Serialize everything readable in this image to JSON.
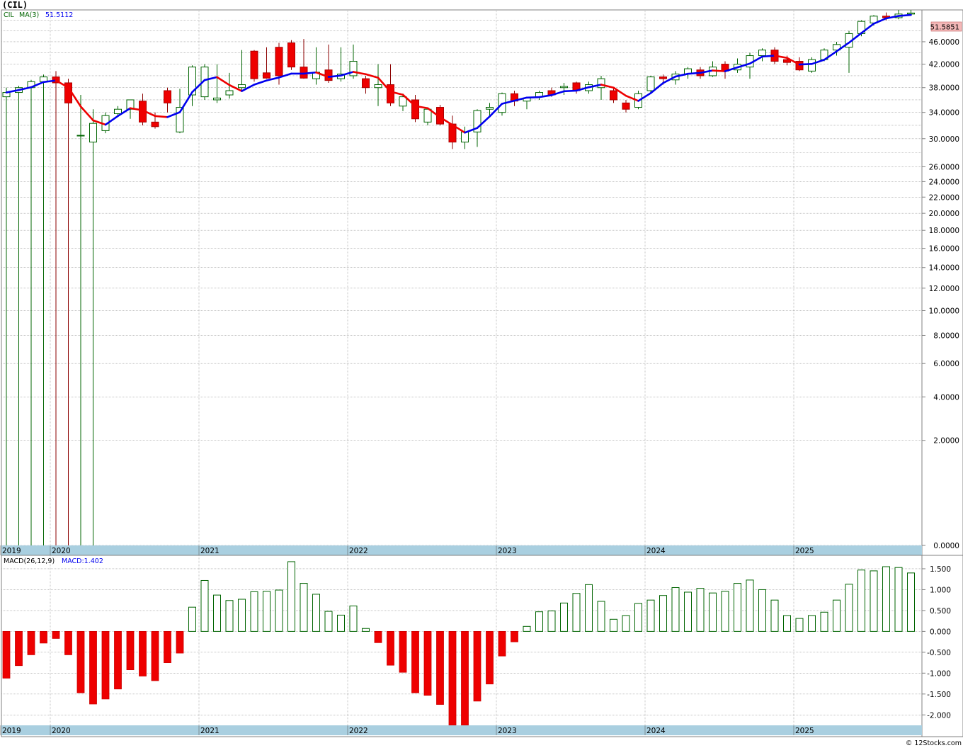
{
  "title": "(CIL)",
  "copyright": "© 12Stocks.com",
  "colors": {
    "up": "#006400",
    "down": "#ee0000",
    "ma_up": "#0000ee",
    "ma_down": "#ee0000",
    "grid": "#a0a0a0",
    "axis_band": "#a9cfe0",
    "last_price_box": "#f4b8b8"
  },
  "chart_data": [
    {
      "type": "candlestick",
      "name": "price_panel",
      "symbol": "CIL",
      "ma_label": "MA(3)",
      "ma_value": "51.5112",
      "last_price": "51.5851",
      "scale": "sqrt",
      "ylim": [
        0,
        52
      ],
      "y_ticks": [
        0,
        2,
        4,
        6,
        8,
        10,
        12,
        14,
        16,
        18,
        20,
        22,
        24,
        26,
        30,
        34,
        38,
        42,
        46
      ],
      "y_tick_labels": [
        "0.0000",
        "2.0000",
        "4.0000",
        "6.0000",
        "8.0000",
        "10.0000",
        "12.0000",
        "14.0000",
        "16.0000",
        "18.0000",
        "20.0000",
        "22.0000",
        "24.0000",
        "26.0000",
        "30.0000",
        "34.0000",
        "38.0000",
        "42.0000",
        "46.0000"
      ],
      "x_year_labels": [
        "2019",
        "2020",
        "2021",
        "2022",
        "2023",
        "2024",
        "2025"
      ],
      "x_year_start_months": [
        0,
        4,
        16,
        28,
        40,
        52,
        64
      ],
      "months_in_view": 74,
      "candles": [
        {
          "o": 36.5,
          "h": 38.0,
          "l": 0.0,
          "c": 37.2
        },
        {
          "o": 37.2,
          "h": 38.3,
          "l": 0.0,
          "c": 38.0
        },
        {
          "o": 38.0,
          "h": 39.3,
          "l": 0.0,
          "c": 39.0
        },
        {
          "o": 39.0,
          "h": 40.2,
          "l": 0.0,
          "c": 39.8
        },
        {
          "o": 39.8,
          "h": 40.8,
          "l": 0.0,
          "c": 38.8
        },
        {
          "o": 38.8,
          "h": 39.5,
          "l": 0.0,
          "c": 35.5
        },
        {
          "o": 30.5,
          "h": 36.8,
          "l": 0.0,
          "c": 30.5
        },
        {
          "o": 29.5,
          "h": 34.5,
          "l": 0.0,
          "c": 32.3
        },
        {
          "o": 31.2,
          "h": 34.0,
          "l": 30.8,
          "c": 33.5
        },
        {
          "o": 33.8,
          "h": 35.0,
          "l": 33.5,
          "c": 34.5
        },
        {
          "o": 34.5,
          "h": 36.0,
          "l": 33.0,
          "c": 36.0
        },
        {
          "o": 35.8,
          "h": 37.0,
          "l": 32.0,
          "c": 32.5
        },
        {
          "o": 32.5,
          "h": 34.0,
          "l": 31.5,
          "c": 31.8
        },
        {
          "o": 37.5,
          "h": 38.0,
          "l": 34.0,
          "c": 35.5
        },
        {
          "o": 31.0,
          "h": 37.8,
          "l": 30.8,
          "c": 34.8
        },
        {
          "o": 36.8,
          "h": 41.8,
          "l": 35.0,
          "c": 41.5
        },
        {
          "o": 36.5,
          "h": 42.0,
          "l": 36.0,
          "c": 41.5
        },
        {
          "o": 36.0,
          "h": 42.0,
          "l": 35.5,
          "c": 36.3
        },
        {
          "o": 36.8,
          "h": 40.5,
          "l": 36.2,
          "c": 37.5
        },
        {
          "o": 38.0,
          "h": 44.5,
          "l": 37.5,
          "c": 38.5
        },
        {
          "o": 44.3,
          "h": 44.5,
          "l": 39.0,
          "c": 39.5
        },
        {
          "o": 40.5,
          "h": 45.0,
          "l": 39.5,
          "c": 39.6
        },
        {
          "o": 45.0,
          "h": 45.8,
          "l": 38.5,
          "c": 40.0
        },
        {
          "o": 45.8,
          "h": 46.3,
          "l": 41.0,
          "c": 41.5
        },
        {
          "o": 41.5,
          "h": 46.5,
          "l": 39.5,
          "c": 39.6
        },
        {
          "o": 39.5,
          "h": 45.0,
          "l": 38.5,
          "c": 40.6
        },
        {
          "o": 41.0,
          "h": 45.5,
          "l": 38.8,
          "c": 39.2
        },
        {
          "o": 39.5,
          "h": 45.0,
          "l": 39.0,
          "c": 40.3
        },
        {
          "o": 40.0,
          "h": 45.5,
          "l": 39.5,
          "c": 42.5
        },
        {
          "o": 39.5,
          "h": 40.0,
          "l": 37.0,
          "c": 38.0
        },
        {
          "o": 38.0,
          "h": 42.0,
          "l": 35.0,
          "c": 38.5
        },
        {
          "o": 38.5,
          "h": 42.0,
          "l": 35.0,
          "c": 35.5
        },
        {
          "o": 35.0,
          "h": 37.0,
          "l": 34.2,
          "c": 36.5
        },
        {
          "o": 36.0,
          "h": 36.8,
          "l": 32.5,
          "c": 33.0
        },
        {
          "o": 32.5,
          "h": 34.8,
          "l": 32.0,
          "c": 34.5
        },
        {
          "o": 34.8,
          "h": 35.2,
          "l": 32.0,
          "c": 32.2
        },
        {
          "o": 32.2,
          "h": 33.5,
          "l": 28.5,
          "c": 29.5
        },
        {
          "o": 29.5,
          "h": 31.8,
          "l": 28.5,
          "c": 31.0
        },
        {
          "o": 31.0,
          "h": 34.5,
          "l": 28.8,
          "c": 34.3
        },
        {
          "o": 34.5,
          "h": 35.5,
          "l": 33.5,
          "c": 34.8
        },
        {
          "o": 34.0,
          "h": 37.2,
          "l": 33.5,
          "c": 37.0
        },
        {
          "o": 37.0,
          "h": 37.5,
          "l": 35.0,
          "c": 35.8
        },
        {
          "o": 35.8,
          "h": 36.5,
          "l": 34.5,
          "c": 36.3
        },
        {
          "o": 36.5,
          "h": 37.5,
          "l": 36.0,
          "c": 37.2
        },
        {
          "o": 37.5,
          "h": 38.0,
          "l": 36.5,
          "c": 36.8
        },
        {
          "o": 38.0,
          "h": 38.8,
          "l": 36.8,
          "c": 38.2
        },
        {
          "o": 38.8,
          "h": 39.0,
          "l": 37.0,
          "c": 37.5
        },
        {
          "o": 37.5,
          "h": 39.0,
          "l": 37.0,
          "c": 38.5
        },
        {
          "o": 38.0,
          "h": 40.0,
          "l": 36.0,
          "c": 39.5
        },
        {
          "o": 37.5,
          "h": 38.0,
          "l": 35.5,
          "c": 36.0
        },
        {
          "o": 35.5,
          "h": 36.0,
          "l": 34.0,
          "c": 34.5
        },
        {
          "o": 34.8,
          "h": 37.5,
          "l": 34.5,
          "c": 37.0
        },
        {
          "o": 37.5,
          "h": 40.0,
          "l": 37.0,
          "c": 39.8
        },
        {
          "o": 39.8,
          "h": 40.2,
          "l": 38.5,
          "c": 39.5
        },
        {
          "o": 39.3,
          "h": 40.8,
          "l": 38.5,
          "c": 40.3
        },
        {
          "o": 40.3,
          "h": 41.5,
          "l": 39.5,
          "c": 41.2
        },
        {
          "o": 41.0,
          "h": 41.5,
          "l": 39.5,
          "c": 40.0
        },
        {
          "o": 40.0,
          "h": 42.5,
          "l": 39.8,
          "c": 41.5
        },
        {
          "o": 42.0,
          "h": 42.5,
          "l": 39.5,
          "c": 40.8
        },
        {
          "o": 41.0,
          "h": 43.0,
          "l": 40.5,
          "c": 42.0
        },
        {
          "o": 41.5,
          "h": 44.0,
          "l": 39.5,
          "c": 43.5
        },
        {
          "o": 43.5,
          "h": 44.8,
          "l": 42.5,
          "c": 44.5
        },
        {
          "o": 44.5,
          "h": 45.0,
          "l": 42.0,
          "c": 42.5
        },
        {
          "o": 42.8,
          "h": 43.5,
          "l": 41.8,
          "c": 42.3
        },
        {
          "o": 42.5,
          "h": 43.2,
          "l": 40.8,
          "c": 41.0
        },
        {
          "o": 40.8,
          "h": 43.2,
          "l": 40.5,
          "c": 42.8
        },
        {
          "o": 42.8,
          "h": 44.8,
          "l": 42.5,
          "c": 44.5
        },
        {
          "o": 44.5,
          "h": 46.0,
          "l": 43.5,
          "c": 45.5
        },
        {
          "o": 45.0,
          "h": 48.0,
          "l": 40.5,
          "c": 47.5
        },
        {
          "o": 47.5,
          "h": 50.0,
          "l": 47.0,
          "c": 49.8
        },
        {
          "o": 49.5,
          "h": 51.0,
          "l": 49.0,
          "c": 50.8
        },
        {
          "o": 50.8,
          "h": 51.5,
          "l": 50.0,
          "c": 50.5
        },
        {
          "o": 50.5,
          "h": 52.0,
          "l": 50.2,
          "c": 51.2
        },
        {
          "o": 51.2,
          "h": 52.0,
          "l": 51.0,
          "c": 51.4
        }
      ]
    },
    {
      "type": "bar",
      "name": "macd_panel",
      "label": "MACD(26,12,9)",
      "value_label": "MACD:1.402",
      "ylim": [
        -2.25,
        1.72
      ],
      "y_ticks": [
        1.5,
        1.0,
        0.5,
        0.0,
        -0.5,
        -1.0,
        -1.5,
        -2.0
      ],
      "y_tick_labels": [
        "1.500",
        "1.000",
        "0.500",
        "0.000",
        "-0.500",
        "-1.000",
        "-1.500",
        "-2.000"
      ],
      "x_year_labels": [
        "2019",
        "2020",
        "2021",
        "2022",
        "2023",
        "2024",
        "2025"
      ],
      "values": [
        -1.12,
        -0.82,
        -0.56,
        -0.28,
        -0.17,
        -0.56,
        -1.47,
        -1.74,
        -1.62,
        -1.38,
        -0.92,
        -1.07,
        -1.18,
        -0.75,
        -0.52,
        0.58,
        1.22,
        0.87,
        0.74,
        0.77,
        0.95,
        0.96,
        0.99,
        1.67,
        1.15,
        0.89,
        0.48,
        0.39,
        0.61,
        0.07,
        -0.27,
        -0.81,
        -0.98,
        -1.47,
        -1.53,
        -1.75,
        -2.25,
        -2.25,
        -1.67,
        -1.26,
        -0.59,
        -0.25,
        0.12,
        0.47,
        0.49,
        0.68,
        0.91,
        1.12,
        0.72,
        0.29,
        0.38,
        0.67,
        0.75,
        0.86,
        1.05,
        0.94,
        1.03,
        0.92,
        0.96,
        1.15,
        1.23,
        1.0,
        0.75,
        0.38,
        0.31,
        0.38,
        0.46,
        0.75,
        1.13,
        1.47,
        1.45,
        1.55,
        1.53,
        1.4
      ]
    }
  ]
}
